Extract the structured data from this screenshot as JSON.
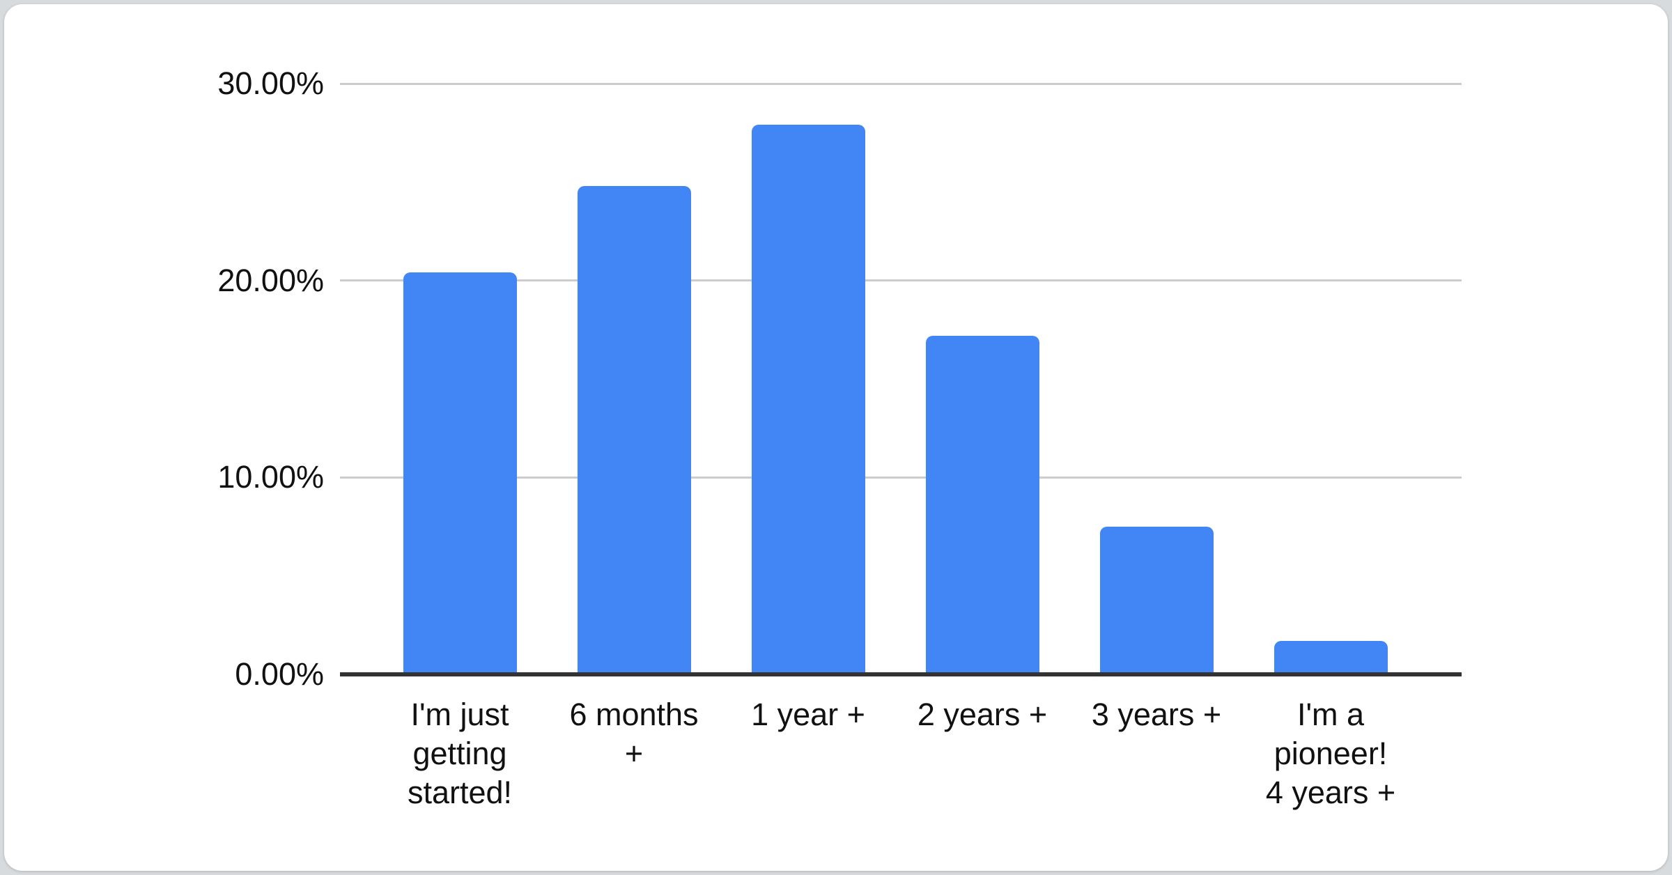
{
  "chart_data": {
    "type": "bar",
    "title": "",
    "xlabel": "",
    "ylabel": "",
    "categories": [
      "I'm just getting started!",
      "6 months +",
      "1 year +",
      "2 years +",
      "3 years +",
      "I'm a pioneer! 4 years +"
    ],
    "values": [
      20.4,
      24.8,
      27.9,
      17.2,
      7.5,
      1.7
    ],
    "value_unit": "percent",
    "ylim": [
      0,
      30
    ],
    "ytick_interval": 10,
    "ytick_labels": [
      "0.00%",
      "10.00%",
      "20.00%",
      "30.00%"
    ],
    "grid": true,
    "legend": "none",
    "bar_color": "#4285f4"
  },
  "display": {
    "y_tick_labels_top_to_bottom": [
      "30.00%",
      "20.00%",
      "10.00%",
      "0.00%"
    ],
    "x_tick_labels": [
      "I'm just\ngetting\nstarted!",
      "6 months\n+",
      "1 year +",
      "2 years +",
      "3 years +",
      "I'm a\npioneer!\n4 years +"
    ]
  },
  "colors": {
    "bar": "#4285f4",
    "gridline": "#cccccc",
    "axis_line": "#333333",
    "text": "#111111",
    "card_background": "#ffffff",
    "page_background": "#d7dbde"
  }
}
